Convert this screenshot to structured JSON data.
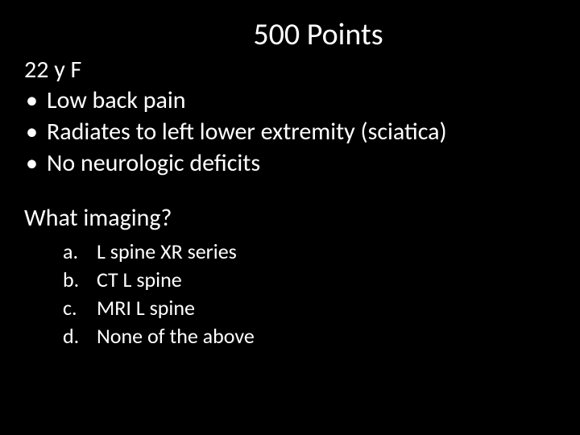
{
  "slide": {
    "title": "500 Points",
    "patient": "22 y F",
    "symptoms": [
      "Low back pain",
      "Radiates to left lower extremity (sciatica)",
      "No neurologic deficits"
    ],
    "question": "What imaging?",
    "options": [
      {
        "label": "a.",
        "text": "L spine XR series"
      },
      {
        "label": "b.",
        "text": "CT L spine"
      },
      {
        "label": "c.",
        "text": "MRI L spine"
      },
      {
        "label": "d.",
        "text": "None of the above"
      }
    ],
    "colors": {
      "background": "#000000",
      "text": "#ffffff"
    },
    "typography": {
      "title_fontsize": 38,
      "body_fontsize": 30,
      "option_fontsize": 26,
      "font_family": "Calibri"
    }
  }
}
